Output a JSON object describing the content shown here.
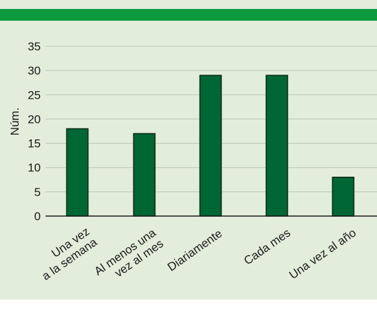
{
  "colors": {
    "header_bar": "#0d9a3f",
    "panel_background": "#e3eddb",
    "bar_fill": "#006633",
    "bar_stroke": "#0b2a18",
    "gridline": "#b9c6b3",
    "axis": "#1a1a1a",
    "text": "#1a1a1a"
  },
  "chart_data": {
    "type": "bar",
    "ylabel": "Núm.",
    "xlabel": "",
    "ylim": [
      0,
      35
    ],
    "yticks": [
      0,
      5,
      10,
      15,
      20,
      25,
      30,
      35
    ],
    "grid": true,
    "legend": "none",
    "categories": [
      [
        "Una vez",
        "a la semana"
      ],
      [
        "Al menos una",
        "vez al mes"
      ],
      [
        "Diariamente"
      ],
      [
        "Cada mes"
      ],
      [
        "Una vez al año"
      ]
    ],
    "values": [
      18,
      17,
      29,
      29,
      8
    ]
  }
}
